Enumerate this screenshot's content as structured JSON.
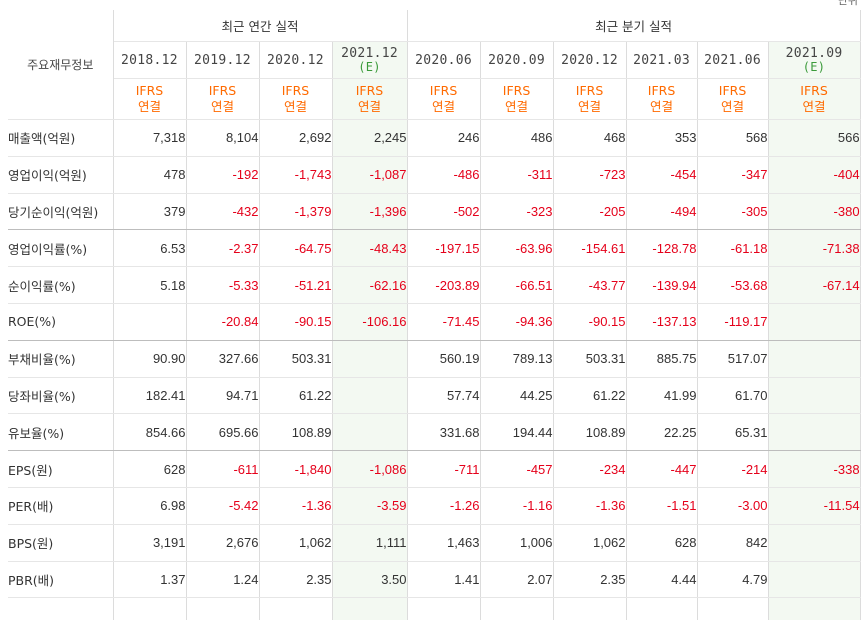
{
  "corner_note": "단위",
  "header": {
    "label_col": "주요재무정보",
    "group_annual": "최근 연간 실적",
    "group_quarter": "최근 분기 실적"
  },
  "periods": [
    {
      "label": "2018.12",
      "est": ""
    },
    {
      "label": "2019.12",
      "est": ""
    },
    {
      "label": "2020.12",
      "est": ""
    },
    {
      "label": "2021.12",
      "est": "(E)"
    },
    {
      "label": "2020.06",
      "est": ""
    },
    {
      "label": "2020.09",
      "est": ""
    },
    {
      "label": "2020.12",
      "est": ""
    },
    {
      "label": "2021.03",
      "est": ""
    },
    {
      "label": "2021.06",
      "est": ""
    },
    {
      "label": "2021.09",
      "est": "(E)"
    }
  ],
  "basis": {
    "line1": "IFRS",
    "line2": "연결"
  },
  "rows": [
    {
      "label": "매출액(억원)",
      "values": [
        "7,318",
        "8,104",
        "2,692",
        "2,245",
        "246",
        "486",
        "468",
        "353",
        "568",
        "566"
      ]
    },
    {
      "label": "영업이익(억원)",
      "values": [
        "478",
        "-192",
        "-1,743",
        "-1,087",
        "-486",
        "-311",
        "-723",
        "-454",
        "-347",
        "-404"
      ]
    },
    {
      "label": "당기순이익(억원)",
      "values": [
        "379",
        "-432",
        "-1,379",
        "-1,396",
        "-502",
        "-323",
        "-205",
        "-494",
        "-305",
        "-380"
      ]
    },
    {
      "label": "영업이익률(%)",
      "values": [
        "6.53",
        "-2.37",
        "-64.75",
        "-48.43",
        "-197.15",
        "-63.96",
        "-154.61",
        "-128.78",
        "-61.18",
        "-71.38"
      ]
    },
    {
      "label": "순이익률(%)",
      "values": [
        "5.18",
        "-5.33",
        "-51.21",
        "-62.16",
        "-203.89",
        "-66.51",
        "-43.77",
        "-139.94",
        "-53.68",
        "-67.14"
      ]
    },
    {
      "label": "ROE(%)",
      "values": [
        "",
        "-20.84",
        "-90.15",
        "-106.16",
        "-71.45",
        "-94.36",
        "-90.15",
        "-137.13",
        "-119.17",
        ""
      ]
    },
    {
      "label": "부채비율(%)",
      "values": [
        "90.90",
        "327.66",
        "503.31",
        "",
        "560.19",
        "789.13",
        "503.31",
        "885.75",
        "517.07",
        ""
      ]
    },
    {
      "label": "당좌비율(%)",
      "values": [
        "182.41",
        "94.71",
        "61.22",
        "",
        "57.74",
        "44.25",
        "61.22",
        "41.99",
        "61.70",
        ""
      ]
    },
    {
      "label": "유보율(%)",
      "values": [
        "854.66",
        "695.66",
        "108.89",
        "",
        "331.68",
        "194.44",
        "108.89",
        "22.25",
        "65.31",
        ""
      ]
    },
    {
      "label": "EPS(원)",
      "values": [
        "628",
        "-611",
        "-1,840",
        "-1,086",
        "-711",
        "-457",
        "-234",
        "-447",
        "-214",
        "-338"
      ]
    },
    {
      "label": "PER(배)",
      "values": [
        "6.98",
        "-5.42",
        "-1.36",
        "-3.59",
        "-1.26",
        "-1.16",
        "-1.36",
        "-1.51",
        "-3.00",
        "-11.54"
      ]
    },
    {
      "label": "BPS(원)",
      "values": [
        "3,191",
        "2,676",
        "1,062",
        "1,111",
        "1,463",
        "1,006",
        "1,062",
        "628",
        "842",
        ""
      ]
    },
    {
      "label": "PBR(배)",
      "values": [
        "1.37",
        "1.24",
        "2.35",
        "3.50",
        "1.41",
        "2.07",
        "2.35",
        "4.44",
        "4.79",
        ""
      ]
    }
  ],
  "colors": {
    "negative": "#e5001a",
    "basis": "#ff6a00",
    "estimate": "#3a9a3a",
    "estimate_bg": "#f3f9f2"
  }
}
